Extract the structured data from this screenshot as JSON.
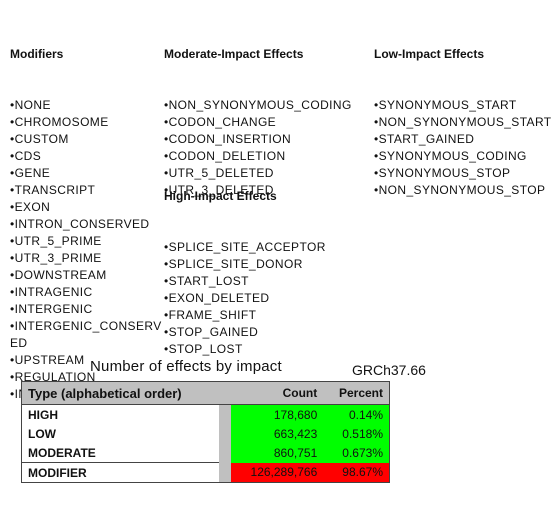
{
  "modifiers": {
    "heading": "Modifiers",
    "items": [
      "•NONE",
      "•CHROMOSOME",
      "•CUSTOM",
      "•CDS",
      "•GENE",
      "•TRANSCRIPT",
      "•EXON",
      "•INTRON_CONSERVED",
      "•UTR_5_PRIME",
      "•UTR_3_PRIME",
      "•DOWNSTREAM",
      "•INTRAGENIC",
      "•INTERGENIC",
      "•INTERGENIC_CONSERV",
      "ED",
      "•UPSTREAM",
      "•REGULATION",
      "•INTRON"
    ]
  },
  "moderate": {
    "heading": "Moderate-Impact Effects",
    "items": [
      "•NON_SYNONYMOUS_CODING",
      "•CODON_CHANGE",
      "•CODON_INSERTION",
      "•CODON_DELETION",
      "•UTR_5_DELETED",
      "•UTR_3_DELETED"
    ]
  },
  "high": {
    "heading": "High-Impact Effects",
    "items": [
      "•SPLICE_SITE_ACCEPTOR",
      "•SPLICE_SITE_DONOR",
      "•START_LOST",
      "•EXON_DELETED",
      "•FRAME_SHIFT",
      "•STOP_GAINED",
      "•STOP_LOST"
    ]
  },
  "low": {
    "heading": "Low-Impact Effects",
    "items": [
      "•SYNONYMOUS_START",
      "•NON_SYNONYMOUS_START",
      "•START_GAINED",
      "•SYNONYMOUS_CODING",
      "•SYNONYMOUS_STOP",
      "•NON_SYNONYMOUS_STOP"
    ]
  },
  "table": {
    "title": "Number of effects by impact",
    "subtitle": "GRCh37.66",
    "headers": {
      "type": "Type (alphabetical order)",
      "count": "Count",
      "percent": "Percent"
    },
    "rows": [
      {
        "type": "HIGH",
        "count": "178,680",
        "percent": "0.14%",
        "color": "#00ff00"
      },
      {
        "type": "LOW",
        "count": "663,423",
        "percent": "0.518%",
        "color": "#00ff00"
      },
      {
        "type": "MODERATE",
        "count": "860,751",
        "percent": "0.673%",
        "color": "#00ff00"
      },
      {
        "type": "MODIFIER",
        "count": "126,289,766",
        "percent": "98.67%",
        "color": "#ff0000"
      }
    ]
  }
}
